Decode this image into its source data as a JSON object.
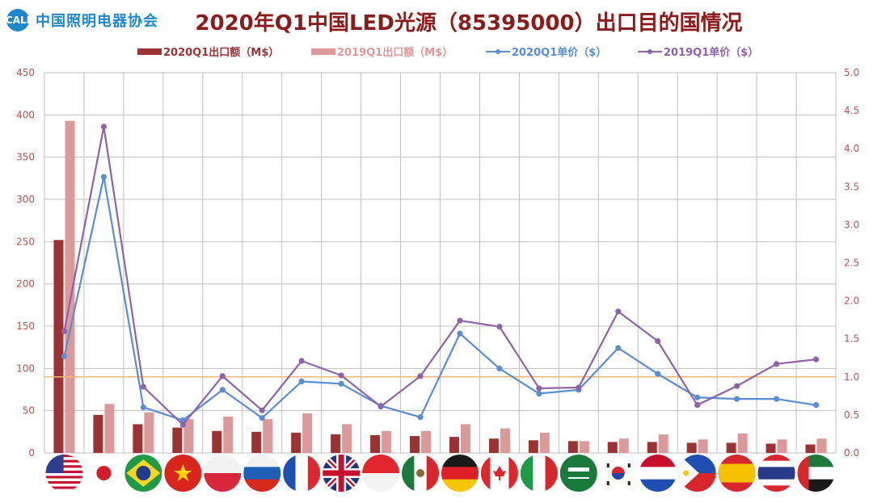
{
  "logo": {
    "mark": "CALI",
    "text": "中国照明电器协会"
  },
  "title": "2020年Q1中国LED光源（85395000）出口目的国情况",
  "colors": {
    "bar2020": "#9b3333",
    "bar2019": "#dc9999",
    "line2020": "#5b8dd3",
    "line2019": "#8d64aa",
    "refline": "#f0b878",
    "grid": "#bfbfbf",
    "axis_text": "#c0504d"
  },
  "chart_data": {
    "type": "bar",
    "categories": [
      "United States",
      "Japan",
      "Brazil",
      "Vietnam",
      "Poland",
      "Russia",
      "France",
      "United Kingdom",
      "Indonesia",
      "Mexico",
      "Germany",
      "Canada",
      "Italy",
      "Saudi Arabia",
      "South Korea",
      "Netherlands",
      "Philippines",
      "Spain",
      "Thailand",
      "UAE"
    ],
    "series": [
      {
        "name": "2020Q1出口额（M$）",
        "type": "bar",
        "axis": "left",
        "values": [
          252,
          45,
          34,
          30,
          26,
          25,
          24,
          22,
          21,
          20,
          19,
          17,
          15,
          14,
          13,
          13,
          12,
          12,
          11,
          10
        ]
      },
      {
        "name": "2019Q1出口额（M$）",
        "type": "bar",
        "axis": "left",
        "values": [
          393,
          58,
          48,
          40,
          43,
          40,
          47,
          34,
          26,
          26,
          34,
          29,
          24,
          14,
          17,
          22,
          16,
          23,
          16,
          17
        ]
      },
      {
        "name": "2020Q1单价（$）",
        "type": "line",
        "axis": "right",
        "values": [
          1.27,
          3.63,
          0.6,
          0.43,
          0.83,
          0.46,
          0.94,
          0.91,
          0.62,
          0.47,
          1.57,
          1.11,
          0.78,
          0.83,
          1.38,
          1.04,
          0.73,
          0.71,
          0.71,
          0.63
        ]
      },
      {
        "name": "2019Q1单价（$）",
        "type": "line",
        "axis": "right",
        "values": [
          1.6,
          4.29,
          0.87,
          0.37,
          1.01,
          0.56,
          1.21,
          1.02,
          0.61,
          1.01,
          1.74,
          1.66,
          0.85,
          0.86,
          1.86,
          1.47,
          0.63,
          0.88,
          1.17,
          1.23
        ]
      }
    ],
    "y_left": {
      "ylim": [
        0,
        450
      ],
      "ticks": [
        "0",
        "50",
        "100",
        "150",
        "200",
        "250",
        "300",
        "350",
        "400",
        "450"
      ]
    },
    "y_right": {
      "ylim": [
        0,
        5
      ],
      "ticks": [
        "0.0",
        "0.5",
        "1.0",
        "1.5",
        "2.0",
        "2.5",
        "3.0",
        "3.5",
        "4.0",
        "4.5",
        "5.0"
      ]
    },
    "reference_line": {
      "axis": "right",
      "value": 1.0
    },
    "grid": true,
    "legend": "top",
    "x_tick_style": "flag icons"
  }
}
